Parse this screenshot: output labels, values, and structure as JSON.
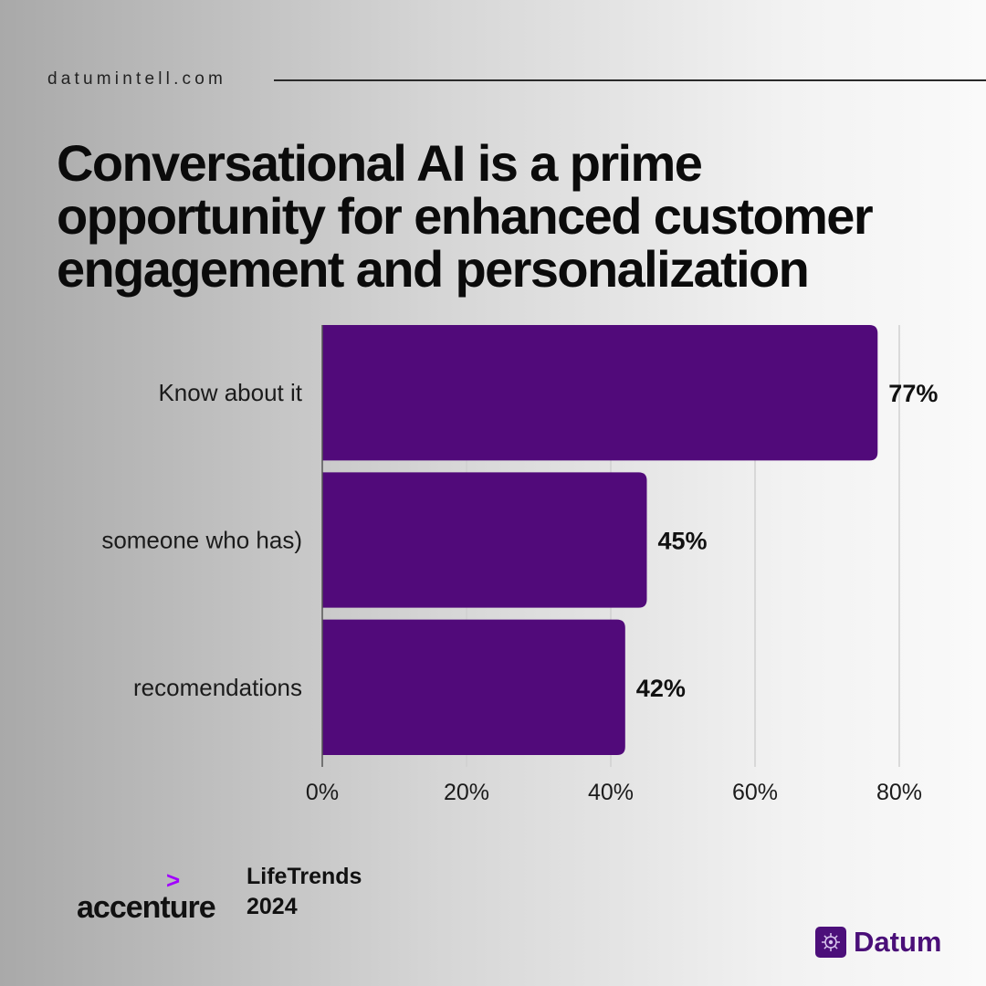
{
  "header": {
    "site": "datumintell.com"
  },
  "title_lines": [
    "Conversational AI is a prime",
    "opportunity for enhanced customer",
    "engagement and personalization"
  ],
  "chart_data": {
    "type": "bar",
    "orientation": "horizontal",
    "categories": [
      "Know about it",
      "someone who has)",
      "recomendations"
    ],
    "values": [
      77,
      45,
      42
    ],
    "value_labels": [
      "77%",
      "45%",
      "42%"
    ],
    "xlim": [
      0,
      80
    ],
    "xticks": [
      0,
      20,
      40,
      60,
      80
    ],
    "xtick_labels": [
      "0%",
      "20%",
      "40%",
      "60%",
      "80%"
    ],
    "grid": true,
    "bar_color": "#510a7a"
  },
  "footer": {
    "logo_text": "accenture",
    "logo_arrow": ">",
    "source_lines": [
      "LifeTrends",
      "2024"
    ],
    "brand_text": "Datum",
    "accent_color": "#a100ff",
    "brand_color": "#4a0f78"
  }
}
